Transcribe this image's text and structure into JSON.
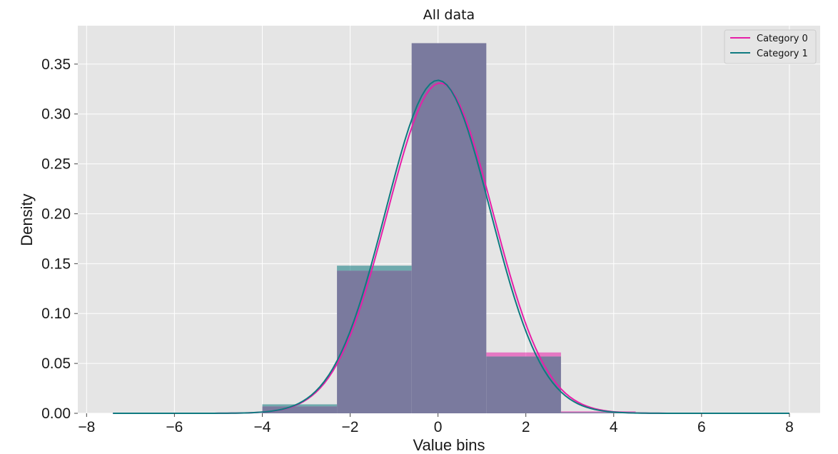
{
  "chart_data": {
    "type": "bar",
    "title": "All data",
    "xlabel": "Value bins",
    "ylabel": "Density",
    "xlim": [
      -8.2,
      8.7
    ],
    "ylim": [
      0,
      0.3885
    ],
    "x_ticks": [
      -8,
      -6,
      -4,
      -2,
      0,
      2,
      4,
      6,
      8
    ],
    "x_tick_labels": [
      "−8",
      "−6",
      "−4",
      "−2",
      "0",
      "2",
      "4",
      "6",
      "8"
    ],
    "y_ticks": [
      0,
      0.05,
      0.1,
      0.15,
      0.2,
      0.25,
      0.3,
      0.35
    ],
    "y_tick_labels": [
      "0.00",
      "0.05",
      "0.10",
      "0.15",
      "0.20",
      "0.25",
      "0.30",
      "0.35"
    ],
    "grid": true,
    "legend_position": "top-right",
    "bin_edges": [
      -4.0,
      -2.3,
      -0.6,
      1.1,
      2.8,
      4.5
    ],
    "series": [
      {
        "name": "Category 0",
        "color": "#e61fa8",
        "histogram": [
          0.007,
          0.143,
          0.371,
          0.061,
          0.002
        ],
        "kde": {
          "mean": 0.05,
          "std": 1.205,
          "x_range": [
            -7.4,
            8.0
          ]
        }
      },
      {
        "name": "Category 1",
        "color": "#0f7a80",
        "histogram": [
          0.009,
          0.148,
          0.371,
          0.057,
          0.001
        ],
        "kde": {
          "mean": 0.0,
          "std": 1.195,
          "x_range": [
            -7.4,
            8.0
          ]
        }
      }
    ],
    "colors": {
      "plot_background": "#e5e5e5",
      "grid": "#ffffff",
      "overlap_fill": "#7a7a9e"
    }
  }
}
